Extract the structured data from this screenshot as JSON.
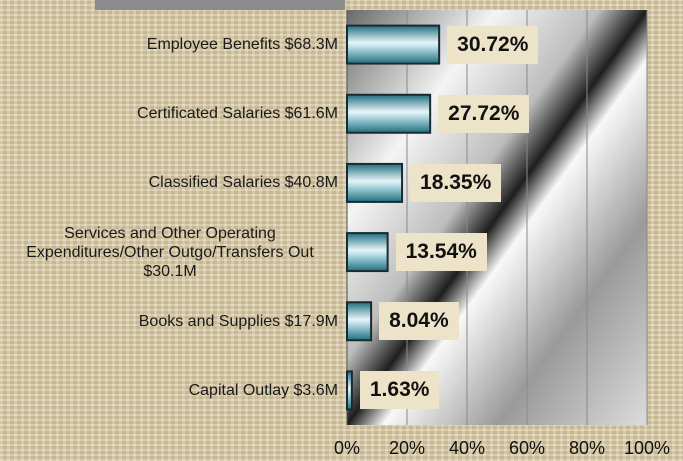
{
  "chart_data": {
    "type": "bar",
    "orientation": "horizontal",
    "categories": [
      "Employee Benefits $68.3M",
      "Certificated Salaries $61.6M",
      "Classified Salaries $40.8M",
      "Services and Other Operating Expenditures/Other Outgo/Transfers Out $30.1M",
      "Books and Supplies $17.9M",
      "Capital Outlay $3.6M"
    ],
    "values": [
      30.72,
      27.72,
      18.35,
      13.54,
      8.04,
      1.63
    ],
    "value_labels": [
      "30.72%",
      "27.72%",
      "18.35%",
      "13.54%",
      "8.04%",
      "1.63%"
    ],
    "color": "#2f8ea0",
    "xlim": [
      0,
      100
    ],
    "xticks": [
      {
        "value": 0,
        "label": "0%"
      },
      {
        "value": 20,
        "label": "20%"
      },
      {
        "value": 40,
        "label": "40%"
      },
      {
        "value": 60,
        "label": "60%"
      },
      {
        "value": 80,
        "label": "80%"
      },
      {
        "value": 100,
        "label": "100%"
      }
    ],
    "grid": true
  }
}
